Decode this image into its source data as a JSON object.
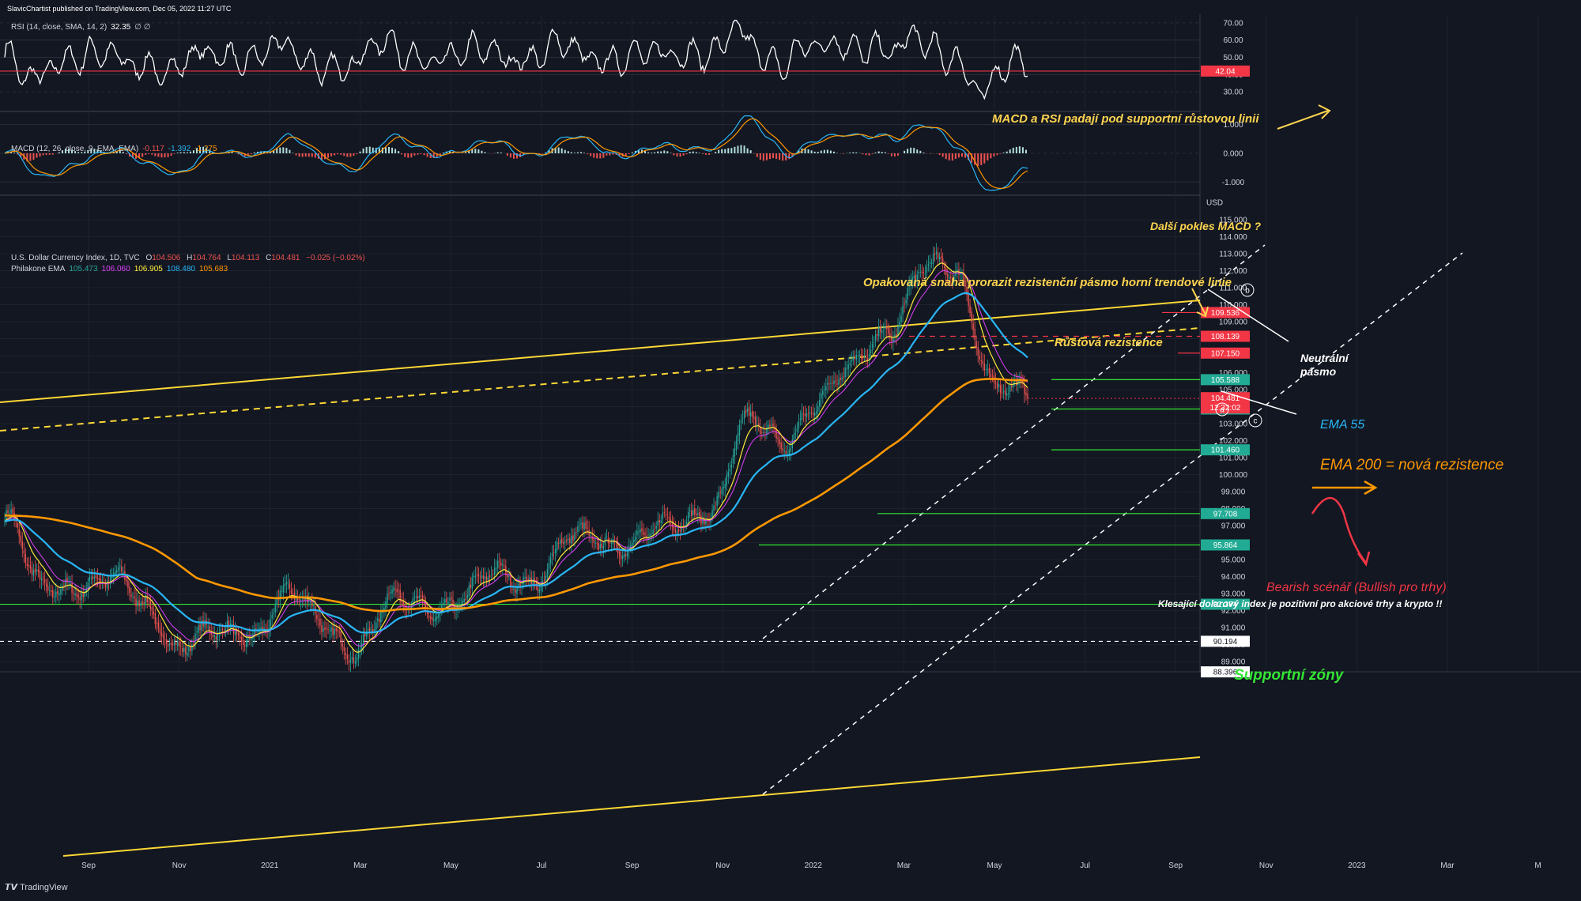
{
  "header": {
    "published": "SlavicChartist published on TradingView.com, Dec 05, 2022 11:27 UTC",
    "watermark": "TradingView"
  },
  "colors": {
    "background": "#131722",
    "grid": "#1e222d",
    "up_candle": "#26a69a",
    "down_candle": "#ef5350",
    "ema_yellow": "#ffeb3b",
    "ema_magenta": "#e040fb",
    "ema_55": "#29b6f6",
    "ema_200": "#ff9800",
    "resistance": "#fdd835",
    "support": "#00e676",
    "red_level": "#f23645",
    "annotation_yellow": "#ffd54f",
    "annotation_orange": "#ff9800",
    "annotation_pink": "#f23645",
    "annotation_green": "#33e633"
  },
  "rsi": {
    "legend": "RSI (14, close, SMA, 14, 2)",
    "value": "32.35",
    "extra": "∅ ∅",
    "level_label": "42.04",
    "level": 42.04,
    "ylim": [
      20,
      75
    ],
    "ticks": [
      "70.00",
      "60.00",
      "50.00",
      "40.00",
      "30.00"
    ],
    "tick_values": [
      70,
      60,
      50,
      40,
      30
    ]
  },
  "macd": {
    "legend": "MACD (12, 26, close, 9, EMA, EMA)",
    "macd_value": "-0.117",
    "signal_value": "-1.392",
    "hist_value": "-1.275",
    "ylim": [
      -1.4,
      1.4
    ],
    "ticks": [
      "1.000",
      "0.000",
      "-1.000"
    ],
    "tick_values": [
      1,
      0,
      -1
    ]
  },
  "main": {
    "legend_symbol": "U.S. Dollar Currency Index, 1D, TVC",
    "ohlc": {
      "o_label": "O",
      "o": "104.506",
      "h_label": "H",
      "h": "104.764",
      "l_label": "L",
      "l": "104.113",
      "c_label": "C",
      "c": "104.481",
      "change": "−0.025 (−0.02%)"
    },
    "ema_legend": "Philakone EMA",
    "ema_values": [
      "105.473",
      "106.060",
      "106.905",
      "108.480",
      "105.683"
    ],
    "currency": "USD",
    "price_ticks": [
      "115.000",
      "114.000",
      "113.000",
      "112.000",
      "111.000",
      "110.000",
      "109.000",
      "108.000",
      "107.000",
      "106.000",
      "105.000",
      "104.000",
      "103.000",
      "102.000",
      "101.000",
      "100.000",
      "99.000",
      "98.000",
      "97.000",
      "96.000",
      "95.000",
      "94.000",
      "93.000",
      "92.000",
      "91.000",
      "90.000",
      "89.000"
    ],
    "price_tick_values": [
      115,
      114,
      113,
      112,
      111,
      110,
      109,
      108,
      107,
      106,
      105,
      104,
      103,
      102,
      101,
      100,
      99,
      98,
      97,
      96,
      95,
      94,
      93,
      92,
      91,
      90,
      89
    ],
    "ylim": [
      88.4,
      116.3
    ],
    "current_price": "104.481",
    "countdown": "12:32:02",
    "price_labels": [
      {
        "text": "109.536",
        "value": 109.536,
        "color": "#f23645"
      },
      {
        "text": "108.139",
        "value": 108.139,
        "color": "#f23645"
      },
      {
        "text": "107.150",
        "value": 107.15,
        "color": "#f23645"
      },
      {
        "text": "105.588",
        "value": 105.588,
        "color": "#22ab94"
      },
      {
        "text": "103.861",
        "value": 103.861,
        "color": "#22ab94"
      },
      {
        "text": "101.460",
        "value": 101.46,
        "color": "#22ab94"
      },
      {
        "text": "97.708",
        "value": 97.708,
        "color": "#22ab94"
      },
      {
        "text": "95.864",
        "value": 95.864,
        "color": "#22ab94"
      },
      {
        "text": "92.374",
        "value": 92.374,
        "color": "#22ab94"
      },
      {
        "text": "90.194",
        "value": 90.194,
        "color": "#ffffff"
      },
      {
        "text": "88.396",
        "value": 88.396,
        "color": "#ffffff"
      }
    ],
    "last_price_value": 104.481
  },
  "time_axis": {
    "labels": [
      "Sep",
      "Nov",
      "2021",
      "Mar",
      "May",
      "Jul",
      "Sep",
      "Nov",
      "2022",
      "Mar",
      "May",
      "Jul",
      "Sep",
      "Nov",
      "2023",
      "Mar",
      "M"
    ]
  },
  "annotations": {
    "rsi_macd_break": "MACD a RSI padají pod supportní růstovou linii",
    "macd_drop": "Další pokles MACD ?",
    "repeated_attempt": "Opakovaná snaha prorazit rezistenční pásmo horní trendové linie",
    "growth_resistance": "Růstová rezistence",
    "neutral_zone_1": "Neutrální",
    "neutral_zone_2": "pásmo",
    "ema55": "EMA 55",
    "ema200": "EMA 200 = nová rezistence",
    "bearish": "Bearish scénář (Bullish pro trhy)",
    "falling_index": "Klesající dolarový index je pozitivní pro akciové trhy a krypto !!",
    "support_zones": "Supportní zóny",
    "wave_a": "a",
    "wave_b": "b",
    "wave_c": "c"
  },
  "chart_data": {
    "type": "candlestick",
    "title": "U.S. Dollar Currency Index, 1D, TVC",
    "period": "Jul 2020 – Dec 2022",
    "close_path": [
      {
        "date": "2020-07",
        "close": 97.5
      },
      {
        "date": "2020-08",
        "close": 93.2
      },
      {
        "date": "2020-09",
        "close": 93.8
      },
      {
        "date": "2020-10",
        "close": 93.6
      },
      {
        "date": "2020-11",
        "close": 92.4
      },
      {
        "date": "2020-12",
        "close": 90.0
      },
      {
        "date": "2021-01",
        "close": 90.4
      },
      {
        "date": "2021-02",
        "close": 90.9
      },
      {
        "date": "2021-03",
        "close": 92.9
      },
      {
        "date": "2021-04",
        "close": 91.2
      },
      {
        "date": "2021-05",
        "close": 90.0
      },
      {
        "date": "2021-06",
        "close": 92.3
      },
      {
        "date": "2021-07",
        "close": 92.4
      },
      {
        "date": "2021-08",
        "close": 92.7
      },
      {
        "date": "2021-09",
        "close": 94.0
      },
      {
        "date": "2021-10",
        "close": 94.1
      },
      {
        "date": "2021-11",
        "close": 96.0
      },
      {
        "date": "2021-12",
        "close": 96.1
      },
      {
        "date": "2022-01",
        "close": 96.5
      },
      {
        "date": "2022-02",
        "close": 96.7
      },
      {
        "date": "2022-03",
        "close": 98.3
      },
      {
        "date": "2022-04",
        "close": 102.9
      },
      {
        "date": "2022-05",
        "close": 101.7
      },
      {
        "date": "2022-06",
        "close": 104.7
      },
      {
        "date": "2022-07",
        "close": 105.9
      },
      {
        "date": "2022-08",
        "close": 108.7
      },
      {
        "date": "2022-09",
        "close": 112.1
      },
      {
        "date": "2022-10",
        "close": 111.5
      },
      {
        "date": "2022-11",
        "close": 105.9
      },
      {
        "date": "2022-12-05",
        "close": 104.481
      }
    ],
    "last_close": 104.481,
    "support_levels": [
      103.861,
      101.46,
      97.708,
      95.864,
      92.374
    ],
    "resistance_levels": [
      109.536,
      108.139,
      107.15,
      105.588
    ],
    "indicators": [
      "RSI (14)",
      "MACD (12, 26, 9)",
      "EMA 55",
      "EMA 200"
    ]
  }
}
